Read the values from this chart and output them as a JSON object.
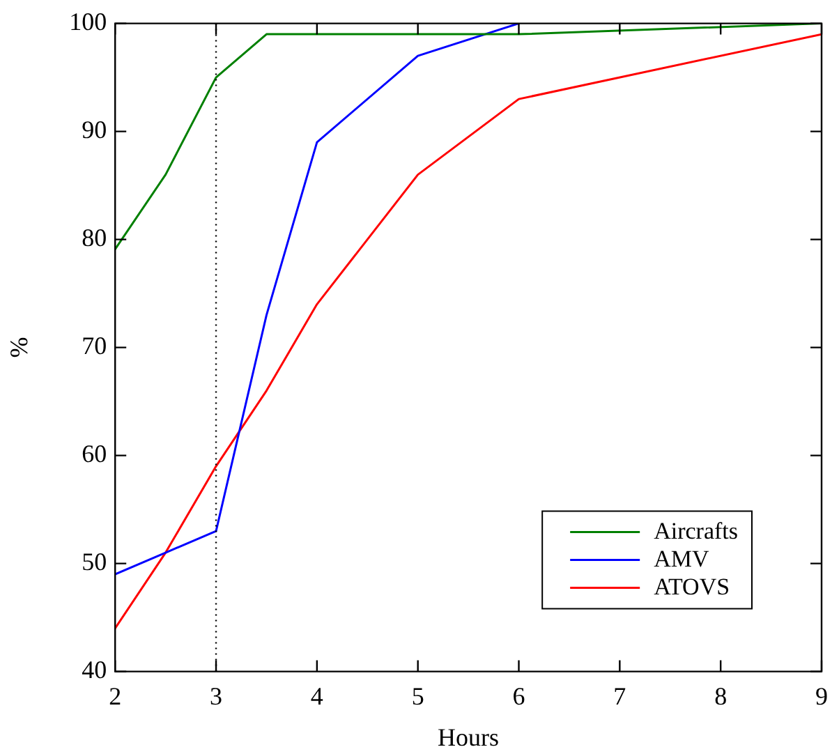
{
  "chart_data": {
    "type": "line",
    "xlabel": "Hours",
    "ylabel": "%",
    "xlim": [
      2,
      9
    ],
    "xticks": [
      2,
      3,
      4,
      5,
      6,
      7,
      8,
      9
    ],
    "ylim": [
      40,
      100
    ],
    "yticks": [
      40,
      50,
      60,
      70,
      80,
      90,
      100
    ],
    "legend": "bottom right",
    "marker": "none",
    "line_style": "solid",
    "ref_lines": [
      {
        "axis": "x",
        "value": 3,
        "color": "#000000",
        "line_style": "dotted"
      }
    ],
    "series": [
      {
        "name": "Aircrafts",
        "color": "#008000",
        "x": [
          2,
          2.5,
          3,
          3.5,
          6,
          9
        ],
        "values": [
          79.1,
          86,
          95,
          99,
          99,
          100
        ]
      },
      {
        "name": "AMV",
        "color": "#0000ff",
        "x": [
          2,
          2.5,
          3,
          3.5,
          4,
          5,
          6
        ],
        "values": [
          49,
          51,
          53,
          73,
          89,
          97,
          100
        ]
      },
      {
        "name": "ATOVS",
        "color": "#ff0000",
        "x": [
          2,
          2.5,
          3,
          3.5,
          4,
          5,
          6,
          9
        ],
        "values": [
          44,
          51,
          59,
          66,
          74,
          86,
          93,
          99
        ]
      }
    ]
  }
}
